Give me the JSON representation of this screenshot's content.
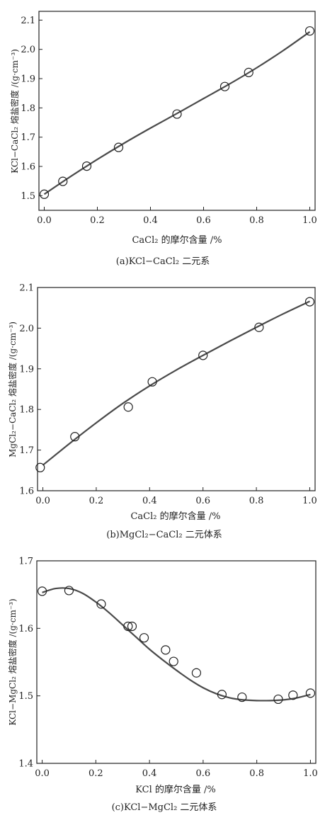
{
  "chart_data": [
    {
      "type": "scatter",
      "caption": "(a)KCl−CaCl₂ 二元系",
      "xlabel": "CaCl₂ 的摩尔含量 /%",
      "ylabel": "KCl−CaCl₂ 熔盐密度 /(g·cm⁻³)",
      "xlim": [
        -0.02,
        1.02
      ],
      "ylim": [
        1.45,
        2.13
      ],
      "xticks": [
        0.0,
        0.2,
        0.4,
        0.6,
        0.8,
        1.0
      ],
      "xtick_labels": [
        "0.0",
        "0.2",
        "0.4",
        "0.6",
        "0.8",
        "1.0"
      ],
      "yticks": [
        1.5,
        1.6,
        1.7,
        1.8,
        1.9,
        2.0,
        2.1
      ],
      "ytick_labels": [
        "1.5",
        "1.6",
        "1.7",
        "1.8",
        "1.9",
        "2.0",
        "2.1"
      ],
      "grid": false,
      "series": [
        {
          "kind": "markers",
          "marker": "open-circle",
          "x": [
            0.0,
            0.07,
            0.16,
            0.28,
            0.5,
            0.68,
            0.77,
            1.0
          ],
          "y": [
            1.505,
            1.549,
            1.601,
            1.665,
            1.779,
            1.873,
            1.921,
            2.063
          ]
        },
        {
          "kind": "fit-line",
          "x": [
            0.0,
            0.1,
            0.2,
            0.3,
            0.4,
            0.5,
            0.6,
            0.7,
            0.8,
            0.9,
            1.0
          ],
          "y": [
            1.505,
            1.566,
            1.624,
            1.679,
            1.731,
            1.781,
            1.832,
            1.883,
            1.937,
            1.996,
            2.06
          ]
        }
      ]
    },
    {
      "type": "scatter",
      "caption": "(b)MgCl₂−CaCl₂ 二元体系",
      "xlabel": "CaCl₂ 的摩尔含量 /%",
      "ylabel": "MgCl₂−CaCl₂ 熔盐密度 /(g·cm⁻³)",
      "xlim": [
        -0.02,
        1.02
      ],
      "ylim": [
        1.6,
        2.1
      ],
      "xticks": [
        0.0,
        0.2,
        0.4,
        0.6,
        0.8,
        1.0
      ],
      "xtick_labels": [
        "0.0",
        "0.2",
        "0.4",
        "0.6",
        "0.8",
        "1.0"
      ],
      "yticks": [
        1.6,
        1.7,
        1.8,
        1.9,
        2.0,
        2.1
      ],
      "ytick_labels": [
        "1.6",
        "1.7",
        "1.8",
        "1.9",
        "2.0",
        "2.1"
      ],
      "grid": false,
      "series": [
        {
          "kind": "markers",
          "marker": "open-circle",
          "x": [
            -0.01,
            0.12,
            0.32,
            0.41,
            0.6,
            0.81,
            1.0
          ],
          "y": [
            1.657,
            1.733,
            1.806,
            1.868,
            1.933,
            2.002,
            2.065
          ]
        },
        {
          "kind": "fit-line",
          "x": [
            0.0,
            0.1,
            0.2,
            0.3,
            0.4,
            0.5,
            0.6,
            0.7,
            0.8,
            0.9,
            1.0
          ],
          "y": [
            1.663,
            1.716,
            1.767,
            1.815,
            1.858,
            1.897,
            1.933,
            1.968,
            2.002,
            2.035,
            2.066
          ]
        }
      ]
    },
    {
      "type": "scatter",
      "caption": "(c)KCl−MgCl₂ 二元体系",
      "xlabel": "KCl 的摩尔含量 /%",
      "ylabel": "KCl−MgCl₂ 熔盐密度 /(g·cm⁻³)",
      "xlim": [
        -0.02,
        1.02
      ],
      "ylim": [
        1.4,
        1.7
      ],
      "xticks": [
        0.0,
        0.2,
        0.4,
        0.6,
        0.8,
        1.0
      ],
      "xtick_labels": [
        "0.0",
        "0.2",
        "0.4",
        "0.6",
        "0.8",
        "1.0"
      ],
      "yticks": [
        1.4,
        1.5,
        1.6,
        1.7
      ],
      "ytick_labels": [
        "1.4",
        "1.5",
        "1.6",
        "1.7"
      ],
      "grid": false,
      "series": [
        {
          "kind": "markers",
          "marker": "open-circle",
          "x": [
            0.0,
            0.1,
            0.22,
            0.32,
            0.335,
            0.38,
            0.46,
            0.49,
            0.575,
            0.67,
            0.745,
            0.88,
            0.935,
            1.0
          ],
          "y": [
            1.655,
            1.656,
            1.636,
            1.603,
            1.603,
            1.586,
            1.568,
            1.551,
            1.534,
            1.502,
            1.498,
            1.495,
            1.501,
            1.504
          ]
        },
        {
          "kind": "fit-line",
          "x": [
            0.0,
            0.05,
            0.1,
            0.15,
            0.2,
            0.25,
            0.3,
            0.35,
            0.4,
            0.45,
            0.5,
            0.55,
            0.6,
            0.65,
            0.7,
            0.75,
            0.8,
            0.85,
            0.9,
            0.95,
            1.0
          ],
          "y": [
            1.653,
            1.659,
            1.659,
            1.652,
            1.639,
            1.623,
            1.605,
            1.587,
            1.569,
            1.553,
            1.538,
            1.524,
            1.512,
            1.503,
            1.497,
            1.494,
            1.493,
            1.493,
            1.494,
            1.497,
            1.502
          ]
        }
      ]
    }
  ],
  "colors": {
    "line": "#4a4a4a",
    "marker": "#222222",
    "axis": "#222222",
    "background": "#ffffff"
  }
}
